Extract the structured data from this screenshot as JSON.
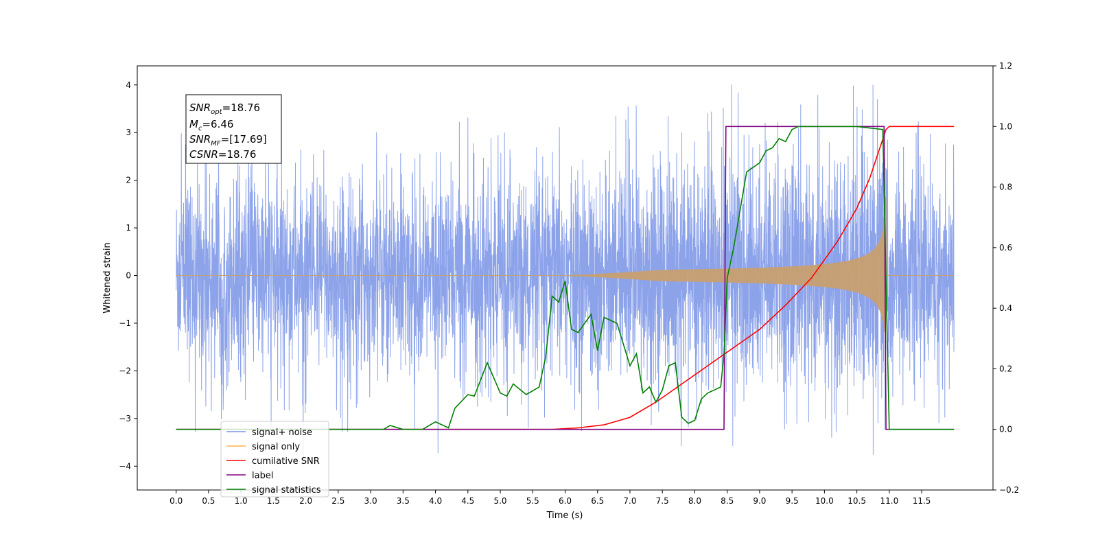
{
  "chart_data": {
    "type": "line",
    "xlabel": "Time (s)",
    "ylabel": "Whitened strain",
    "xlim": [
      -0.6,
      12.6
    ],
    "ylim": [
      -4.5,
      4.4
    ],
    "y2lim": [
      -0.2,
      1.2
    ],
    "grid": false,
    "legend_position": "lower-left",
    "x_ticks": [
      "0.0",
      "0.5",
      "1.0",
      "1.5",
      "2.0",
      "2.5",
      "3.0",
      "3.5",
      "4.0",
      "4.5",
      "5.0",
      "5.5",
      "6.0",
      "6.5",
      "7.0",
      "7.5",
      "8.0",
      "8.5",
      "9.0",
      "9.5",
      "10.0",
      "10.5",
      "11.0",
      "11.5"
    ],
    "y_ticks": [
      "−4",
      "−3",
      "−2",
      "−1",
      "0",
      "1",
      "2",
      "3",
      "4"
    ],
    "y2_ticks": [
      "−0.2",
      "0.0",
      "0.2",
      "0.4",
      "0.6",
      "0.8",
      "1.0",
      "1.2"
    ],
    "annotation": {
      "line1_main": "SNR",
      "line1_sub": "opt",
      "line1_val": "=18.76",
      "line2_main": "M",
      "line2_sub": "c",
      "line2_val": "=6.46",
      "line3_main": "SNR",
      "line3_sub": "MF",
      "line3_val": "=[17.69]",
      "line4_main": "CSNR",
      "line4_val": "=18.76"
    },
    "legend": [
      {
        "label": "signal+ noise",
        "color": "#7893e6"
      },
      {
        "label": "signal only",
        "color": "#ffb347"
      },
      {
        "label": "cumilative SNR",
        "color": "#ff0000"
      },
      {
        "label": "label",
        "color": "#800080"
      },
      {
        "label": "signal statistics",
        "color": "#008000"
      }
    ],
    "series": [
      {
        "name": "signal+ noise",
        "color": "#7893e6",
        "axis": "left",
        "x_range": [
          0.0,
          12.0
        ],
        "typical_amplitude": 1.6,
        "peak_max": 4.0,
        "peak_min": -4.1
      },
      {
        "name": "signal only",
        "color": "#c8a070",
        "axis": "left",
        "x_range": [
          0.0,
          12.0
        ],
        "chirp_start": 6.0,
        "chirp_end": 10.95,
        "end_amplitude": 3.0
      },
      {
        "name": "cumilative SNR",
        "color": "#ff0000",
        "axis": "right",
        "x": [
          0.0,
          5.8,
          6.2,
          6.6,
          7.0,
          7.4,
          7.8,
          8.2,
          8.6,
          9.0,
          9.4,
          9.8,
          10.2,
          10.5,
          10.7,
          10.95,
          11.0,
          12.0
        ],
        "y": [
          0.0,
          0.0,
          0.005,
          0.015,
          0.04,
          0.09,
          0.15,
          0.21,
          0.27,
          0.33,
          0.41,
          0.5,
          0.62,
          0.73,
          0.83,
          0.99,
          1.0,
          1.0
        ]
      },
      {
        "name": "label",
        "color": "#800080",
        "axis": "right",
        "x": [
          0.0,
          8.45,
          8.48,
          10.92,
          10.95,
          12.0
        ],
        "y": [
          0.0,
          0.0,
          1.0,
          1.0,
          0.0,
          0.0
        ]
      },
      {
        "name": "signal statistics",
        "color": "#008000",
        "axis": "right",
        "x": [
          0.0,
          2.0,
          2.5,
          3.2,
          3.3,
          3.5,
          3.8,
          4.0,
          4.2,
          4.3,
          4.5,
          4.6,
          4.8,
          5.0,
          5.1,
          5.2,
          5.4,
          5.6,
          5.7,
          5.8,
          5.9,
          6.0,
          6.1,
          6.2,
          6.4,
          6.5,
          6.6,
          6.8,
          7.0,
          7.1,
          7.2,
          7.3,
          7.4,
          7.5,
          7.6,
          7.7,
          7.8,
          7.9,
          8.0,
          8.1,
          8.2,
          8.3,
          8.4,
          8.45,
          8.5,
          8.6,
          8.8,
          9.0,
          9.1,
          9.2,
          9.3,
          9.4,
          9.5,
          9.6,
          9.8,
          10.0,
          10.5,
          10.9,
          11.0,
          12.0
        ],
        "y": [
          0.0,
          0.0,
          0.0,
          0.0,
          0.013,
          0.0,
          0.0,
          0.025,
          0.005,
          0.07,
          0.115,
          0.11,
          0.22,
          0.12,
          0.11,
          0.15,
          0.115,
          0.14,
          0.24,
          0.44,
          0.42,
          0.49,
          0.33,
          0.32,
          0.38,
          0.26,
          0.37,
          0.35,
          0.21,
          0.25,
          0.12,
          0.14,
          0.09,
          0.13,
          0.21,
          0.22,
          0.04,
          0.02,
          0.03,
          0.1,
          0.12,
          0.13,
          0.14,
          0.25,
          0.5,
          0.6,
          0.85,
          0.88,
          0.92,
          0.93,
          0.96,
          0.95,
          0.99,
          1.0,
          1.0,
          1.0,
          1.0,
          0.99,
          0.0,
          0.0
        ]
      }
    ]
  }
}
